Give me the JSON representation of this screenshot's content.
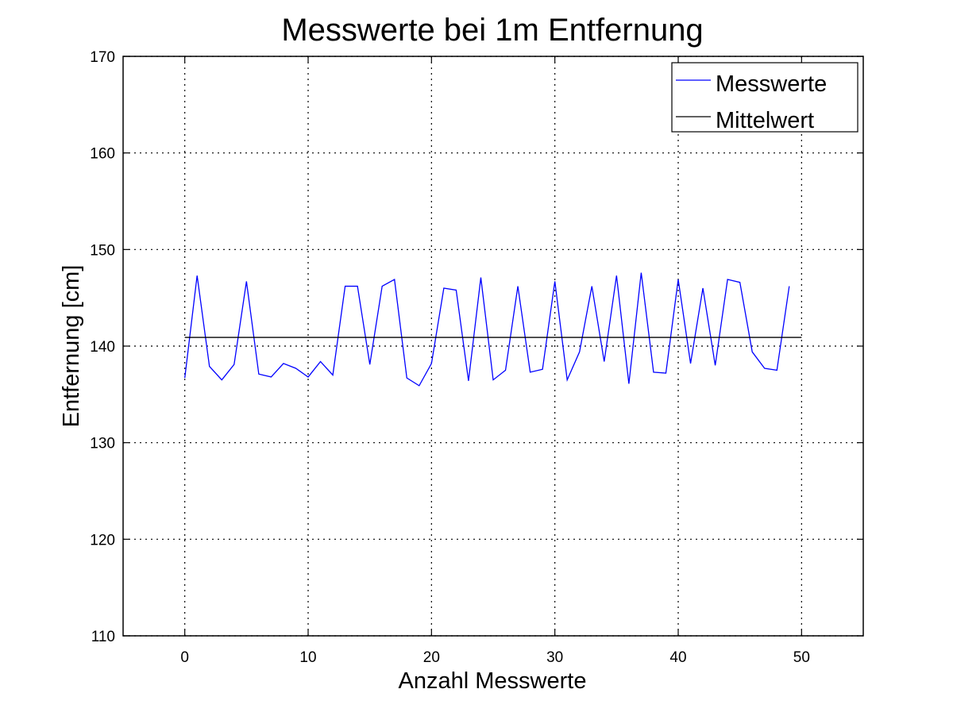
{
  "chart_data": {
    "type": "line",
    "title": "Messwerte bei 1m Entfernung",
    "xlabel": "Anzahl Messwerte",
    "ylabel": "Entfernung [cm]",
    "xlim": [
      -5,
      55
    ],
    "ylim": [
      110,
      170
    ],
    "xticks": [
      0,
      10,
      20,
      30,
      40,
      50
    ],
    "yticks": [
      110,
      120,
      130,
      140,
      150,
      160,
      170
    ],
    "grid": true,
    "legend_position": "top-right",
    "series": [
      {
        "name": "Messwerte",
        "color": "#0000ff",
        "x": [
          0,
          1,
          2,
          3,
          4,
          5,
          6,
          7,
          8,
          9,
          10,
          11,
          12,
          13,
          14,
          15,
          16,
          17,
          18,
          19,
          20,
          21,
          22,
          23,
          24,
          25,
          26,
          27,
          28,
          29,
          30,
          31,
          32,
          33,
          34,
          35,
          36,
          37,
          38,
          39,
          40,
          41,
          42,
          43,
          44,
          45,
          46,
          47,
          48,
          49
        ],
        "values": [
          136.7,
          147.3,
          137.9,
          136.5,
          138.1,
          146.7,
          137.1,
          136.8,
          138.2,
          137.7,
          136.8,
          138.4,
          137.0,
          146.2,
          146.2,
          138.1,
          146.2,
          146.9,
          136.7,
          135.9,
          138.2,
          146.0,
          145.8,
          136.4,
          147.1,
          136.5,
          137.5,
          146.2,
          137.3,
          137.6,
          146.7,
          136.5,
          139.4,
          146.2,
          138.4,
          147.3,
          136.1,
          147.6,
          137.3,
          137.2,
          146.9,
          138.2,
          146.0,
          138.0,
          146.9,
          146.6,
          139.4,
          137.7,
          137.5,
          146.2
        ]
      },
      {
        "name": "Mittelwert",
        "color": "#000000",
        "x": [
          0,
          50
        ],
        "values": [
          140.9,
          140.9
        ]
      }
    ]
  }
}
